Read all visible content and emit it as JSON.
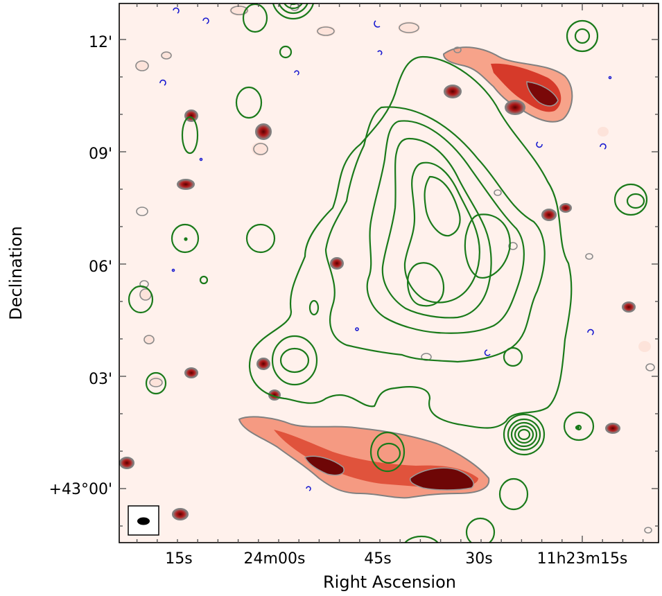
{
  "chart_data": {
    "type": "contour-map",
    "xlabel": "Right Ascension",
    "ylabel": "Declination",
    "x_ticks": [
      "15s",
      "24m00s",
      "45s",
      "30s",
      "11h23m15s"
    ],
    "y_ticks": [
      "+43°00'",
      "03'",
      "06'",
      "09'",
      "12'"
    ],
    "ylim_arcmin": [
      -1.0,
      13.0
    ],
    "colormap": "Reds",
    "colors": {
      "radio_contour": "#808080",
      "xray_contour": "#1a7a1a",
      "negative_contour": "#1a1ad0",
      "frame": "#000000"
    },
    "beam_marker": "filled black ellipse in boxed inset, bottom-left"
  }
}
